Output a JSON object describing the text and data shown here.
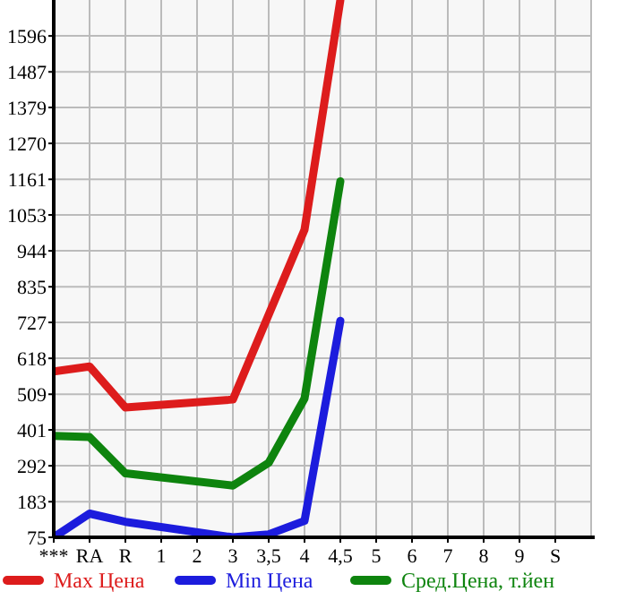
{
  "chart_data": {
    "type": "line",
    "categories": [
      "***",
      "RA",
      "R",
      "1",
      "2",
      "3",
      "3,5",
      "4",
      "4,5",
      "5",
      "6",
      "7",
      "8",
      "9",
      "S"
    ],
    "series": [
      {
        "name": "Max Цена",
        "color": "#dd1c1c",
        "values": [
          578,
          593,
          469,
          null,
          null,
          493,
          null,
          1008,
          1705,
          null,
          null,
          null,
          null,
          null,
          null
        ]
      },
      {
        "name": "Min Цена",
        "color": "#1c1cdd",
        "values": [
          75,
          147,
          122,
          null,
          null,
          75,
          84,
          125,
          732,
          null,
          null,
          null,
          null,
          null,
          null
        ]
      },
      {
        "name": "Сред.Цена, т.йен",
        "color": "#0e840e",
        "values": [
          383,
          379,
          269,
          null,
          null,
          232,
          301,
          496,
          1155,
          null,
          null,
          null,
          null,
          null,
          null
        ]
      }
    ],
    "ylim": [
      75,
      1705
    ],
    "yticks": [
      75,
      183,
      292,
      401,
      509,
      618,
      727,
      835,
      944,
      1053,
      1161,
      1270,
      1379,
      1487,
      1596
    ],
    "grid": true,
    "legend": "bottom",
    "marker": "none",
    "line_style": "solid"
  }
}
